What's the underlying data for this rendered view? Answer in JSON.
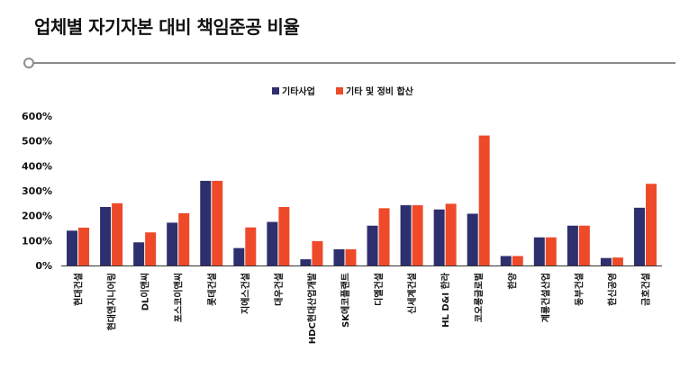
{
  "page_title": "업체별 자기자본 대비 책임준공 비율",
  "colors": {
    "series1": "#2e2f6e",
    "series2": "#ee4a2a",
    "rule": "#8c8c8c"
  },
  "chart_data": {
    "type": "bar",
    "title": "",
    "xlabel": "",
    "ylabel": "",
    "ylim": [
      0,
      600
    ],
    "yticks": [
      "0%",
      "100%",
      "200%",
      "300%",
      "400%",
      "500%",
      "600%"
    ],
    "legend_position": "top-center",
    "grid": false,
    "categories": [
      "현대건설",
      "현대엔지니어링",
      "DL이앤씨",
      "포스코이앤씨",
      "롯데건설",
      "지에스건설",
      "대우건설",
      "HDC현대산업개발",
      "SK에코플랜트",
      "디엘건설",
      "신세계건설",
      "HL D&I 한라",
      "코오롱글로벌",
      "한양",
      "계룡건설산업",
      "동부건설",
      "한신공영",
      "금호건설"
    ],
    "series": [
      {
        "name": "기타사업",
        "values": [
          140,
          235,
          93,
          172,
          340,
          70,
          175,
          25,
          65,
          160,
          242,
          225,
          208,
          38,
          113,
          160,
          30,
          232
        ]
      },
      {
        "name": "기타 및 정비 합산",
        "values": [
          152,
          250,
          133,
          210,
          340,
          153,
          235,
          98,
          65,
          230,
          242,
          248,
          522,
          38,
          113,
          160,
          32,
          328
        ]
      }
    ]
  }
}
